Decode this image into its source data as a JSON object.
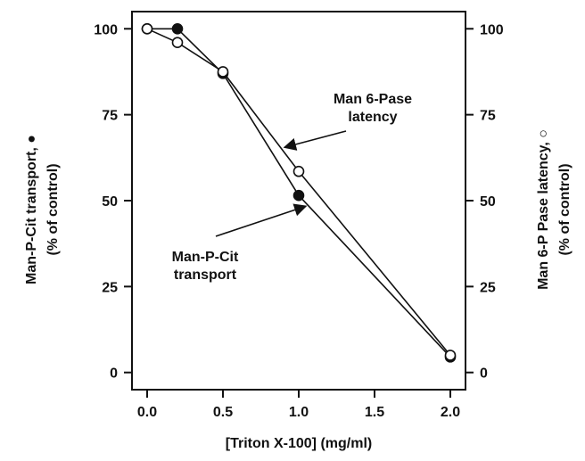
{
  "chart_data": {
    "type": "line",
    "xlabel": "[Triton X-100] (mg/ml)",
    "ylabel_left": [
      "Man-P-Cit transport, ●",
      "(% of control)"
    ],
    "ylabel_right": [
      "Man 6-P Pase latency, ○",
      "(% of control)"
    ],
    "xlim": [
      -0.1,
      2.1
    ],
    "ylim": [
      -5,
      105
    ],
    "x_ticks": [
      "0.0",
      "0.5",
      "1.0",
      "1.5",
      "2.0"
    ],
    "x_tick_values": [
      0,
      0.5,
      1.0,
      1.5,
      2.0
    ],
    "y_ticks": [
      "0",
      "25",
      "50",
      "75",
      "100"
    ],
    "y_tick_values": [
      0,
      25,
      50,
      75,
      100
    ],
    "grid": false,
    "series": [
      {
        "marker": "filled-circle",
        "color": "#111111",
        "x": [
          0,
          0.2,
          0.5,
          1.0,
          2.0
        ],
        "y": [
          100,
          100,
          87,
          51.5,
          4.5
        ]
      },
      {
        "marker": "open-circle",
        "color": "#111111",
        "x": [
          0,
          0.2,
          0.5,
          1.0,
          2.0
        ],
        "y": [
          100,
          96,
          87.5,
          58.5,
          5
        ]
      }
    ],
    "annotations": [
      {
        "lines": [
          "Man 6-Pase",
          "latency"
        ],
        "points_to_series": 1,
        "at_x": 1.0
      },
      {
        "lines": [
          "Man-P-Cit",
          "transport"
        ],
        "points_to_series": 0,
        "at_x": 1.0
      }
    ]
  }
}
